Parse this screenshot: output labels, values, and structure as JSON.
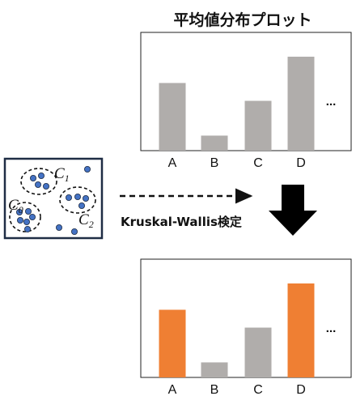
{
  "title": "平均値分布プロット",
  "test_label": "Kruskal-Wallis検定",
  "ellipsis": "...",
  "clusters": [
    {
      "name": "C",
      "sub": "1"
    },
    {
      "name": "C",
      "sub": "0"
    },
    {
      "name": "C",
      "sub": "2"
    }
  ],
  "colors": {
    "bar_default": "#b0adab",
    "bar_highlight": "#ef7f33",
    "point": "#4472c4",
    "frame": "#1f2d45"
  },
  "chart_data": [
    {
      "type": "bar",
      "categories": [
        "A",
        "B",
        "C",
        "D"
      ],
      "values": [
        72,
        16,
        53,
        100
      ],
      "ylim": [
        0,
        100
      ],
      "highlight": []
    },
    {
      "type": "bar",
      "categories": [
        "A",
        "B",
        "C",
        "D"
      ],
      "values": [
        72,
        16,
        53,
        100
      ],
      "ylim": [
        0,
        100
      ],
      "highlight": [
        "A",
        "D"
      ]
    }
  ]
}
